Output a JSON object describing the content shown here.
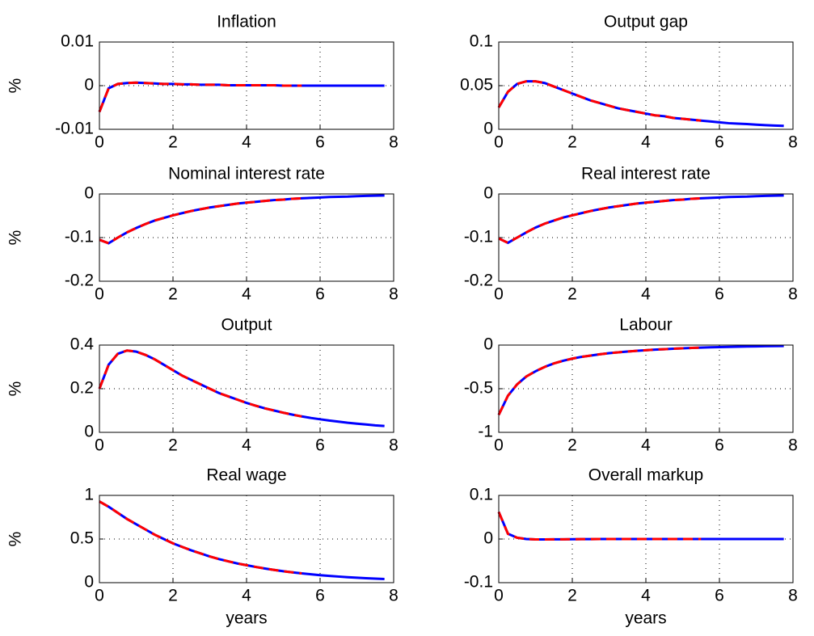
{
  "chart_data": [
    {
      "type": "line",
      "title": "Inflation",
      "ylabel": "%",
      "x": [
        0,
        0.25,
        0.5,
        0.75,
        1,
        1.25,
        1.5,
        1.75,
        2,
        2.25,
        2.5,
        2.75,
        3,
        3.25,
        3.5,
        3.75,
        4,
        4.25,
        4.5,
        4.75,
        5,
        5.25,
        5.5,
        5.75,
        6,
        6.25,
        6.5,
        6.75,
        7,
        7.25,
        7.5,
        7.75
      ],
      "xlim": [
        0,
        8
      ],
      "xticks": [
        0,
        2,
        4,
        6,
        8
      ],
      "ylim": [
        -0.01,
        0.01
      ],
      "yticks": [
        -0.01,
        0,
        0.01
      ],
      "grid": true,
      "series": [
        {
          "color": "#0000ff",
          "dash": "solid",
          "values": [
            -0.006,
            -0.0006,
            0.0004,
            0.0006,
            0.0007,
            0.0006,
            0.0005,
            0.0004,
            0.0004,
            0.0003,
            0.0003,
            0.0002,
            0.0002,
            0.0002,
            0.0001,
            0.0001,
            0.0001,
            0.0001,
            0.0001,
            0.0001,
            0,
            0,
            0,
            0,
            0,
            0,
            0,
            0,
            0,
            0,
            0,
            0
          ]
        },
        {
          "color": "#ff0000",
          "dash": "dashed",
          "values": [
            -0.006,
            -0.0006,
            0.0004,
            0.0006,
            0.0007,
            0.0006,
            0.0005,
            0.0004,
            0.0004,
            0.0003,
            0.0003,
            0.0002,
            0.0002,
            0.0002,
            0.0001,
            0.0001,
            0.0001,
            0.0001,
            0.0001,
            0.0001,
            0,
            0,
            0,
            null,
            null,
            null,
            null,
            null,
            null,
            null,
            null,
            null
          ]
        }
      ]
    },
    {
      "type": "line",
      "title": "Output gap",
      "x": [
        0,
        0.25,
        0.5,
        0.75,
        1,
        1.25,
        1.5,
        1.75,
        2,
        2.25,
        2.5,
        2.75,
        3,
        3.25,
        3.5,
        3.75,
        4,
        4.25,
        4.5,
        4.75,
        5,
        5.25,
        5.5,
        5.75,
        6,
        6.25,
        6.5,
        6.75,
        7,
        7.25,
        7.5,
        7.75
      ],
      "xlim": [
        0,
        8
      ],
      "xticks": [
        0,
        2,
        4,
        6,
        8
      ],
      "ylim": [
        0,
        0.1
      ],
      "yticks": [
        0,
        0.05,
        0.1
      ],
      "grid": true,
      "series": [
        {
          "color": "#0000ff",
          "dash": "solid",
          "values": [
            0.025,
            0.043,
            0.052,
            0.055,
            0.055,
            0.053,
            0.049,
            0.045,
            0.041,
            0.037,
            0.033,
            0.03,
            0.027,
            0.024,
            0.022,
            0.02,
            0.018,
            0.016,
            0.015,
            0.013,
            0.012,
            0.011,
            0.01,
            0.009,
            0.008,
            0.007,
            0.0065,
            0.006,
            0.0053,
            0.0048,
            0.0043,
            0.0039
          ]
        },
        {
          "color": "#ff0000",
          "dash": "dashed",
          "values": [
            0.025,
            0.043,
            0.052,
            0.055,
            0.055,
            0.053,
            0.049,
            0.045,
            0.041,
            0.037,
            0.033,
            0.03,
            0.027,
            0.024,
            0.022,
            0.02,
            0.018,
            0.016,
            0.015,
            0.013,
            0.012,
            0.011,
            0.01,
            null,
            null,
            null,
            null,
            null,
            null,
            null,
            null,
            null
          ]
        }
      ]
    },
    {
      "type": "line",
      "title": "Nominal interest rate",
      "ylabel": "%",
      "x": [
        0,
        0.25,
        0.5,
        0.75,
        1,
        1.25,
        1.5,
        1.75,
        2,
        2.25,
        2.5,
        2.75,
        3,
        3.25,
        3.5,
        3.75,
        4,
        4.25,
        4.5,
        4.75,
        5,
        5.25,
        5.5,
        5.75,
        6,
        6.25,
        6.5,
        6.75,
        7,
        7.25,
        7.5,
        7.75
      ],
      "xlim": [
        0,
        8
      ],
      "xticks": [
        0,
        2,
        4,
        6,
        8
      ],
      "ylim": [
        -0.2,
        0
      ],
      "yticks": [
        -0.2,
        -0.1,
        0
      ],
      "grid": true,
      "series": [
        {
          "color": "#0000ff",
          "dash": "solid",
          "values": [
            -0.105,
            -0.113,
            -0.1,
            -0.088,
            -0.078,
            -0.069,
            -0.061,
            -0.055,
            -0.049,
            -0.044,
            -0.039,
            -0.035,
            -0.031,
            -0.028,
            -0.025,
            -0.022,
            -0.02,
            -0.018,
            -0.016,
            -0.014,
            -0.013,
            -0.011,
            -0.01,
            -0.009,
            -0.008,
            -0.007,
            -0.0065,
            -0.006,
            -0.005,
            -0.0045,
            -0.004,
            -0.0035
          ]
        },
        {
          "color": "#ff0000",
          "dash": "dashed",
          "values": [
            -0.105,
            -0.113,
            -0.1,
            -0.088,
            -0.078,
            -0.069,
            -0.061,
            -0.055,
            -0.049,
            -0.044,
            -0.039,
            -0.035,
            -0.031,
            -0.028,
            -0.025,
            -0.022,
            -0.02,
            -0.018,
            -0.016,
            -0.014,
            -0.013,
            -0.011,
            -0.01,
            null,
            null,
            null,
            null,
            null,
            null,
            null,
            null,
            null
          ]
        }
      ]
    },
    {
      "type": "line",
      "title": "Real interest rate",
      "x": [
        0,
        0.25,
        0.5,
        0.75,
        1,
        1.25,
        1.5,
        1.75,
        2,
        2.25,
        2.5,
        2.75,
        3,
        3.25,
        3.5,
        3.75,
        4,
        4.25,
        4.5,
        4.75,
        5,
        5.25,
        5.5,
        5.75,
        6,
        6.25,
        6.5,
        6.75,
        7,
        7.25,
        7.5,
        7.75
      ],
      "xlim": [
        0,
        8
      ],
      "xticks": [
        0,
        2,
        4,
        6,
        8
      ],
      "ylim": [
        -0.2,
        0
      ],
      "yticks": [
        -0.2,
        -0.1,
        0
      ],
      "grid": true,
      "series": [
        {
          "color": "#0000ff",
          "dash": "solid",
          "values": [
            -0.102,
            -0.112,
            -0.1,
            -0.088,
            -0.077,
            -0.068,
            -0.061,
            -0.054,
            -0.049,
            -0.044,
            -0.039,
            -0.035,
            -0.031,
            -0.028,
            -0.025,
            -0.022,
            -0.02,
            -0.018,
            -0.016,
            -0.014,
            -0.013,
            -0.011,
            -0.01,
            -0.009,
            -0.008,
            -0.007,
            -0.0065,
            -0.006,
            -0.005,
            -0.0045,
            -0.004,
            -0.0035
          ]
        },
        {
          "color": "#ff0000",
          "dash": "dashed",
          "values": [
            -0.102,
            -0.112,
            -0.1,
            -0.088,
            -0.077,
            -0.068,
            -0.061,
            -0.054,
            -0.049,
            -0.044,
            -0.039,
            -0.035,
            -0.031,
            -0.028,
            -0.025,
            -0.022,
            -0.02,
            -0.018,
            -0.016,
            -0.014,
            -0.013,
            -0.011,
            -0.01,
            null,
            null,
            null,
            null,
            null,
            null,
            null,
            null,
            null
          ]
        }
      ]
    },
    {
      "type": "line",
      "title": "Output",
      "ylabel": "%",
      "x": [
        0,
        0.25,
        0.5,
        0.75,
        1,
        1.25,
        1.5,
        1.75,
        2,
        2.25,
        2.5,
        2.75,
        3,
        3.25,
        3.5,
        3.75,
        4,
        4.25,
        4.5,
        4.75,
        5,
        5.25,
        5.5,
        5.75,
        6,
        6.25,
        6.5,
        6.75,
        7,
        7.25,
        7.5,
        7.75
      ],
      "xlim": [
        0,
        8
      ],
      "xticks": [
        0,
        2,
        4,
        6,
        8
      ],
      "ylim": [
        0,
        0.4
      ],
      "yticks": [
        0,
        0.2,
        0.4
      ],
      "grid": true,
      "series": [
        {
          "color": "#0000ff",
          "dash": "solid",
          "values": [
            0.2,
            0.31,
            0.36,
            0.375,
            0.37,
            0.355,
            0.335,
            0.31,
            0.285,
            0.26,
            0.24,
            0.22,
            0.2,
            0.18,
            0.165,
            0.15,
            0.135,
            0.122,
            0.11,
            0.1,
            0.09,
            0.081,
            0.073,
            0.066,
            0.06,
            0.054,
            0.049,
            0.044,
            0.04,
            0.036,
            0.032,
            0.029
          ]
        },
        {
          "color": "#ff0000",
          "dash": "dashed",
          "values": [
            0.2,
            0.31,
            0.36,
            0.375,
            0.37,
            0.355,
            0.335,
            0.31,
            0.285,
            0.26,
            0.24,
            0.22,
            0.2,
            0.18,
            0.165,
            0.15,
            0.135,
            0.122,
            0.11,
            0.1,
            0.09,
            0.081,
            0.073,
            null,
            null,
            null,
            null,
            null,
            null,
            null,
            null,
            null
          ]
        }
      ]
    },
    {
      "type": "line",
      "title": "Labour",
      "x": [
        0,
        0.25,
        0.5,
        0.75,
        1,
        1.25,
        1.5,
        1.75,
        2,
        2.25,
        2.5,
        2.75,
        3,
        3.25,
        3.5,
        3.75,
        4,
        4.25,
        4.5,
        4.75,
        5,
        5.25,
        5.5,
        5.75,
        6,
        6.25,
        6.5,
        6.75,
        7,
        7.25,
        7.5,
        7.75
      ],
      "xlim": [
        0,
        8
      ],
      "xticks": [
        0,
        2,
        4,
        6,
        8
      ],
      "ylim": [
        -1,
        0
      ],
      "yticks": [
        -1,
        -0.5,
        0
      ],
      "grid": true,
      "series": [
        {
          "color": "#0000ff",
          "dash": "solid",
          "values": [
            -0.8,
            -0.58,
            -0.45,
            -0.36,
            -0.3,
            -0.25,
            -0.21,
            -0.18,
            -0.155,
            -0.135,
            -0.12,
            -0.105,
            -0.093,
            -0.083,
            -0.074,
            -0.066,
            -0.059,
            -0.052,
            -0.047,
            -0.042,
            -0.037,
            -0.033,
            -0.029,
            -0.026,
            -0.023,
            -0.021,
            -0.018,
            -0.016,
            -0.015,
            -0.013,
            -0.012,
            -0.01
          ]
        },
        {
          "color": "#ff0000",
          "dash": "dashed",
          "values": [
            -0.8,
            -0.58,
            -0.45,
            -0.36,
            -0.3,
            -0.25,
            -0.21,
            -0.18,
            -0.155,
            -0.135,
            -0.12,
            -0.105,
            -0.093,
            -0.083,
            -0.074,
            -0.066,
            -0.059,
            -0.052,
            -0.047,
            -0.042,
            -0.037,
            -0.033,
            -0.029,
            null,
            null,
            null,
            null,
            null,
            null,
            null,
            null,
            null
          ]
        }
      ]
    },
    {
      "type": "line",
      "title": "Real wage",
      "ylabel": "%",
      "xlabel": "years",
      "x": [
        0,
        0.25,
        0.5,
        0.75,
        1,
        1.25,
        1.5,
        1.75,
        2,
        2.25,
        2.5,
        2.75,
        3,
        3.25,
        3.5,
        3.75,
        4,
        4.25,
        4.5,
        4.75,
        5,
        5.25,
        5.5,
        5.75,
        6,
        6.25,
        6.5,
        6.75,
        7,
        7.25,
        7.5,
        7.75
      ],
      "xlim": [
        0,
        8
      ],
      "xticks": [
        0,
        2,
        4,
        6,
        8
      ],
      "ylim": [
        0,
        1
      ],
      "yticks": [
        0,
        0.5,
        1
      ],
      "grid": true,
      "series": [
        {
          "color": "#0000ff",
          "dash": "solid",
          "values": [
            0.93,
            0.87,
            0.8,
            0.73,
            0.67,
            0.61,
            0.55,
            0.5,
            0.45,
            0.41,
            0.37,
            0.335,
            0.3,
            0.27,
            0.245,
            0.22,
            0.2,
            0.18,
            0.162,
            0.146,
            0.131,
            0.118,
            0.106,
            0.096,
            0.086,
            0.078,
            0.07,
            0.063,
            0.057,
            0.051,
            0.046,
            0.042
          ]
        },
        {
          "color": "#ff0000",
          "dash": "dashed",
          "values": [
            0.93,
            0.87,
            0.8,
            0.73,
            0.67,
            0.61,
            0.55,
            0.5,
            0.45,
            0.41,
            0.37,
            0.335,
            0.3,
            0.27,
            0.245,
            0.22,
            0.2,
            0.18,
            0.162,
            0.146,
            0.131,
            0.118,
            0.106,
            null,
            null,
            null,
            null,
            null,
            null,
            null,
            null,
            null
          ]
        }
      ]
    },
    {
      "type": "line",
      "title": "Overall markup",
      "xlabel": "years",
      "x": [
        0,
        0.25,
        0.5,
        0.75,
        1,
        1.25,
        1.5,
        1.75,
        2,
        2.25,
        2.5,
        2.75,
        3,
        3.25,
        3.5,
        3.75,
        4,
        4.25,
        4.5,
        4.75,
        5,
        5.25,
        5.5,
        5.75,
        6,
        6.25,
        6.5,
        6.75,
        7,
        7.25,
        7.5,
        7.75
      ],
      "xlim": [
        0,
        8
      ],
      "xticks": [
        0,
        2,
        4,
        6,
        8
      ],
      "ylim": [
        -0.1,
        0.1
      ],
      "yticks": [
        -0.1,
        0,
        0.1
      ],
      "grid": true,
      "series": [
        {
          "color": "#0000ff",
          "dash": "solid",
          "values": [
            0.062,
            0.012,
            0.003,
            0,
            -0.001,
            -0.001,
            -0.0008,
            -0.0006,
            -0.0004,
            -0.0003,
            -0.0002,
            -0.0001,
            0,
            0,
            0,
            0,
            0,
            0,
            0,
            0,
            0,
            0,
            0,
            0,
            0,
            0,
            0,
            0,
            0,
            0,
            0,
            0
          ]
        },
        {
          "color": "#ff0000",
          "dash": "dashed",
          "values": [
            0.062,
            0.012,
            0.003,
            0,
            -0.001,
            -0.001,
            -0.0008,
            -0.0006,
            -0.0004,
            -0.0003,
            -0.0002,
            -0.0001,
            0,
            0,
            0,
            0,
            0,
            0,
            0,
            0,
            0,
            0,
            0,
            null,
            null,
            null,
            null,
            null,
            null,
            null,
            null,
            null
          ]
        }
      ]
    }
  ]
}
